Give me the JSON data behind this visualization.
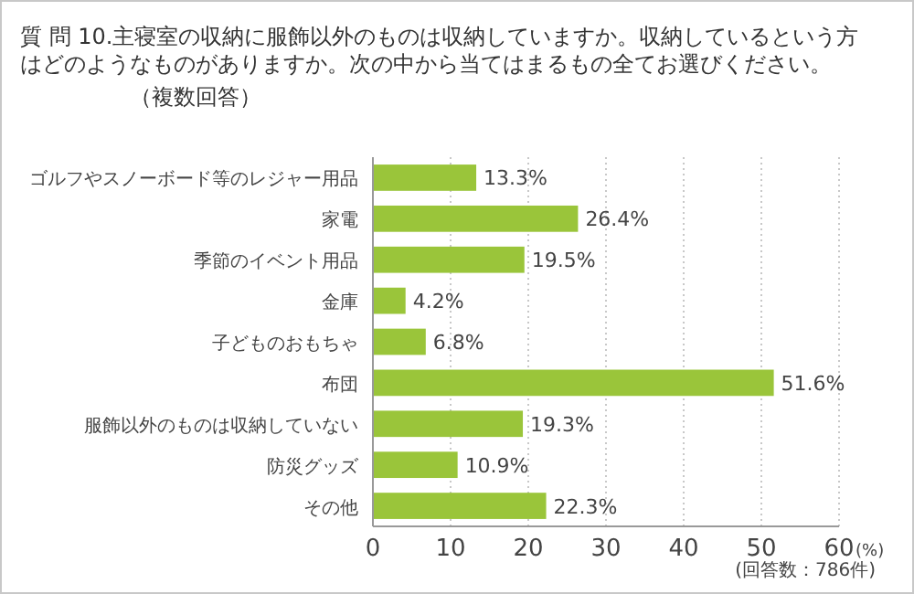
{
  "chart_data": {
    "type": "bar",
    "orientation": "horizontal",
    "title": "質 問 10.主寝室の収納に服飾以外のものは収納していますか。収納しているという方はどのようなものがありますか。次の中から当てはまるもの全てお選びください。",
    "subtitle": "（複数回答）",
    "xlabel": "(%)",
    "categories": [
      "ゴルフやスノーボード等のレジャー用品",
      "家電",
      "季節のイベント用品",
      "金庫",
      "子どものおもちゃ",
      "布団",
      "服飾以外のものは収納していない",
      "防災グッズ",
      "その他"
    ],
    "series": [
      {
        "color": "#9ac53a",
        "values": [
          13.3,
          26.4,
          19.5,
          4.2,
          6.8,
          51.6,
          19.3,
          10.9,
          22.3
        ],
        "value_labels": [
          "13.3%",
          "26.4%",
          "19.5%",
          "4.2%",
          "6.8%",
          "51.6%",
          "19.3%",
          "10.9%",
          "22.3%"
        ]
      }
    ],
    "xlim": [
      0,
      60
    ],
    "xticks": [
      0,
      10,
      20,
      30,
      40,
      50,
      60
    ],
    "grid": "x",
    "annotations": [
      "(回答数：786件)"
    ]
  }
}
